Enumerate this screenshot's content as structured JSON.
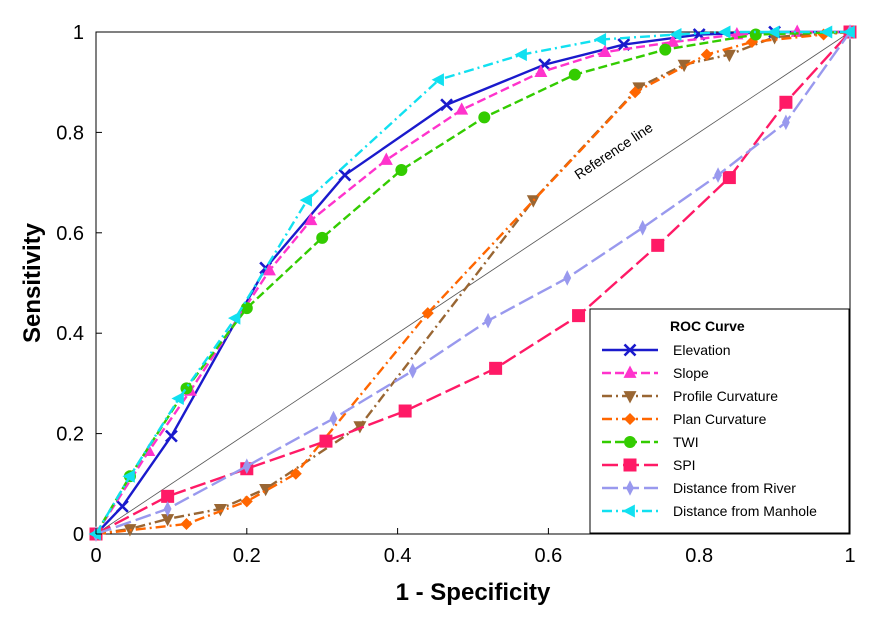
{
  "chart_data": {
    "type": "line",
    "xlabel": "1 - Specificity",
    "ylabel": "Sensitivity",
    "xlim": [
      0,
      1
    ],
    "ylim": [
      0,
      1
    ],
    "xticks": [
      "0",
      "0.2",
      "0.4",
      "0.6",
      "0.8",
      "1"
    ],
    "yticks": [
      "0",
      "0.2",
      "0.4",
      "0.6",
      "0.8",
      "1"
    ],
    "grid": false,
    "legend": {
      "title": "ROC Curve",
      "placement": "bottom-right"
    },
    "reference_line": {
      "label": "Reference line",
      "x": [
        0,
        1
      ],
      "y": [
        0,
        1
      ],
      "color": "#555555"
    },
    "series": [
      {
        "name": "Elevation",
        "color": "#1a1acc",
        "marker": "x",
        "dash": "solid",
        "x": [
          0,
          0.035,
          0.1,
          0.225,
          0.33,
          0.465,
          0.595,
          0.7,
          0.8,
          0.9,
          1.0
        ],
        "y": [
          0,
          0.055,
          0.195,
          0.53,
          0.715,
          0.855,
          0.935,
          0.975,
          0.995,
          1.0,
          1.0
        ]
      },
      {
        "name": "Slope",
        "color": "#ff33cc",
        "marker": "triangle-up",
        "dash": "dash",
        "x": [
          0,
          0.07,
          0.125,
          0.23,
          0.285,
          0.385,
          0.485,
          0.59,
          0.675,
          0.765,
          0.85,
          0.93,
          1.0
        ],
        "y": [
          0,
          0.165,
          0.285,
          0.525,
          0.625,
          0.745,
          0.845,
          0.92,
          0.96,
          0.98,
          0.995,
          1.0,
          1.0
        ]
      },
      {
        "name": "Profile Curvature",
        "color": "#996633",
        "marker": "triangle-down",
        "dash": "dashdot",
        "x": [
          0,
          0.045,
          0.095,
          0.165,
          0.225,
          0.35,
          0.58,
          0.72,
          0.78,
          0.84,
          0.9,
          1.0
        ],
        "y": [
          0,
          0.01,
          0.03,
          0.05,
          0.09,
          0.215,
          0.665,
          0.89,
          0.935,
          0.955,
          0.99,
          1.0
        ]
      },
      {
        "name": "Plan Curvature",
        "color": "#ff6600",
        "marker": "diamond",
        "dash": "dashdot",
        "x": [
          0,
          0.12,
          0.2,
          0.265,
          0.44,
          0.715,
          0.81,
          0.87,
          0.965,
          1.0
        ],
        "y": [
          0,
          0.02,
          0.065,
          0.12,
          0.44,
          0.88,
          0.955,
          0.98,
          0.995,
          1.0
        ]
      },
      {
        "name": "TWI",
        "color": "#33cc00",
        "marker": "circle",
        "dash": "dash",
        "x": [
          0,
          0.045,
          0.12,
          0.2,
          0.3,
          0.405,
          0.515,
          0.635,
          0.755,
          0.875,
          1.0
        ],
        "y": [
          0,
          0.115,
          0.29,
          0.45,
          0.59,
          0.725,
          0.83,
          0.915,
          0.965,
          0.995,
          1.0
        ]
      },
      {
        "name": "SPI",
        "color": "#ff1a66",
        "marker": "square",
        "dash": "longdash",
        "x": [
          0,
          0.095,
          0.2,
          0.305,
          0.41,
          0.53,
          0.64,
          0.745,
          0.84,
          0.915,
          1.0
        ],
        "y": [
          0,
          0.075,
          0.13,
          0.185,
          0.245,
          0.33,
          0.435,
          0.575,
          0.71,
          0.86,
          1.0
        ]
      },
      {
        "name": "Distance from River",
        "color": "#9999ee",
        "marker": "thin-diamond",
        "dash": "longdash",
        "x": [
          0,
          0.095,
          0.2,
          0.315,
          0.42,
          0.52,
          0.625,
          0.725,
          0.825,
          0.915,
          1.0
        ],
        "y": [
          0,
          0.05,
          0.135,
          0.23,
          0.325,
          0.425,
          0.51,
          0.61,
          0.715,
          0.82,
          1.0
        ]
      },
      {
        "name": "Distance from Manhole",
        "color": "#11e0f0",
        "marker": "triangle-left",
        "dash": "dashdot",
        "x": [
          0,
          0.045,
          0.11,
          0.185,
          0.28,
          0.455,
          0.565,
          0.67,
          0.77,
          0.835,
          0.9,
          0.97,
          1.0
        ],
        "y": [
          0,
          0.115,
          0.27,
          0.43,
          0.665,
          0.905,
          0.955,
          0.985,
          0.995,
          1.0,
          1.0,
          1.0,
          1.0
        ]
      }
    ]
  }
}
